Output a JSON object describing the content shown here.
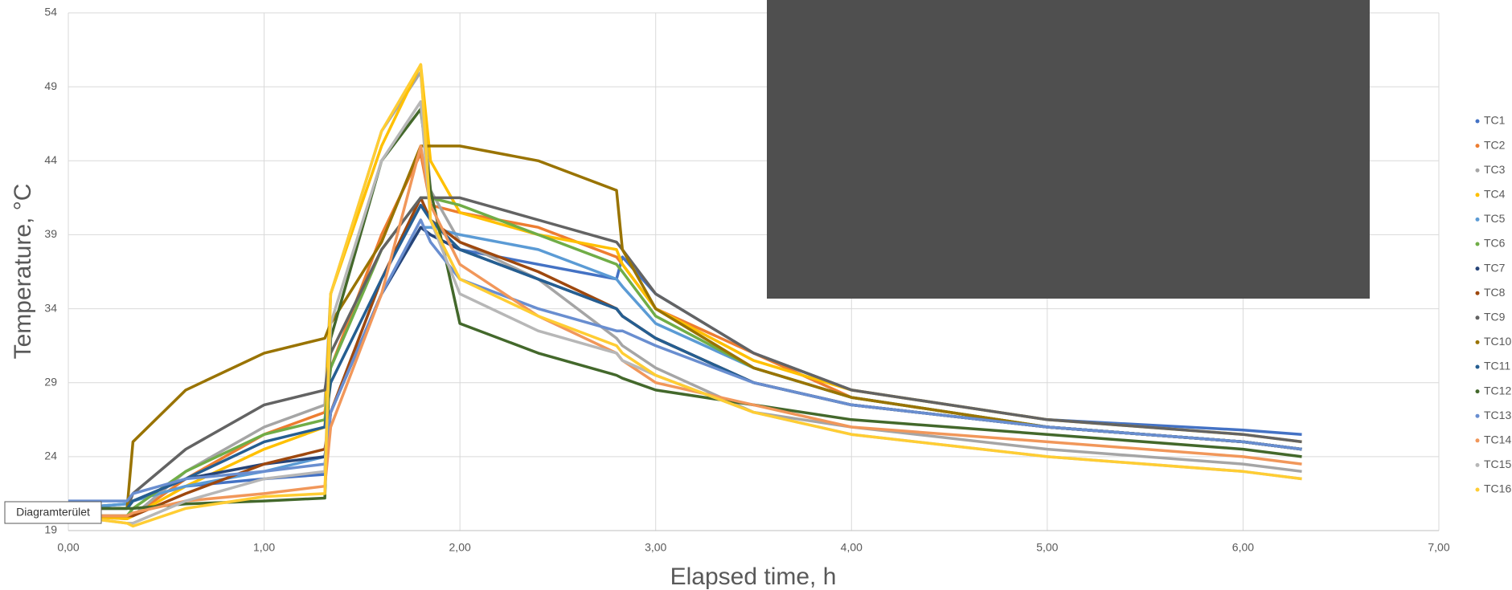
{
  "chart_data": {
    "type": "line",
    "x_label": "Elapsed time, h",
    "y_label": "Temperature, °C",
    "tooltip": "Diagramterület",
    "grid": true,
    "legend": "right",
    "xlim": [
      0,
      7
    ],
    "ylim": [
      19,
      54
    ],
    "xticks": [
      {
        "value": 0,
        "label": "0,00"
      },
      {
        "value": 1,
        "label": "1,00"
      },
      {
        "value": 2,
        "label": "2,00"
      },
      {
        "value": 3,
        "label": "3,00"
      },
      {
        "value": 4,
        "label": "4,00"
      },
      {
        "value": 5,
        "label": "5,00"
      },
      {
        "value": 6,
        "label": "6,00"
      },
      {
        "value": 7,
        "label": "7,00"
      }
    ],
    "yticks": [
      19,
      24,
      29,
      34,
      39,
      44,
      49,
      54
    ],
    "x": [
      0,
      0.3,
      0.33,
      0.6,
      1.0,
      1.31,
      1.34,
      1.6,
      1.8,
      1.85,
      2.0,
      2.4,
      2.8,
      2.83,
      3.0,
      3.5,
      4.0,
      5.0,
      6.0,
      6.3
    ],
    "series": [
      {
        "name": "TC1",
        "color": "#4472c4",
        "values": [
          20.5,
          20.8,
          21,
          22,
          22.5,
          22.8,
          27,
          35,
          39.5,
          39,
          38,
          37,
          36,
          37.5,
          35,
          31,
          28.5,
          26.5,
          25.8,
          25.5
        ]
      },
      {
        "name": "TC2",
        "color": "#ed7d31",
        "values": [
          20,
          20,
          20,
          22.5,
          25.5,
          27,
          30,
          39,
          44.5,
          41,
          40.5,
          39.5,
          37.5,
          37,
          34,
          31,
          28,
          26,
          25,
          24.5
        ]
      },
      {
        "name": "TC3",
        "color": "#a5a5a5",
        "values": [
          20,
          19.8,
          20,
          23,
          26,
          27.5,
          35,
          46,
          50,
          42,
          38.5,
          36,
          32,
          31.5,
          30,
          27,
          26,
          24.5,
          23.5,
          23
        ]
      },
      {
        "name": "TC4",
        "color": "#ffc000",
        "values": [
          20,
          19.8,
          20,
          22,
          24.5,
          26,
          35,
          45,
          50.5,
          44,
          40.5,
          39,
          38,
          37,
          34,
          30.5,
          28.5,
          26.5,
          25.5,
          25
        ]
      },
      {
        "name": "TC5",
        "color": "#5b9bd5",
        "values": [
          20.5,
          20.8,
          21,
          22,
          23,
          24,
          27,
          35,
          39.5,
          39.5,
          39,
          38,
          36,
          35.5,
          33,
          30,
          28,
          26,
          25,
          24.5
        ]
      },
      {
        "name": "TC6",
        "color": "#70ad47",
        "values": [
          20,
          20,
          20.5,
          23,
          25.5,
          26.5,
          30,
          38,
          41.5,
          41.5,
          41,
          39,
          37,
          36.5,
          33.5,
          30,
          28,
          26,
          25,
          24.5
        ]
      },
      {
        "name": "TC7",
        "color": "#264478",
        "values": [
          20.5,
          20.5,
          21,
          22.5,
          23.5,
          24,
          27,
          35,
          39.5,
          39,
          38,
          36,
          34,
          33.5,
          32,
          29,
          27.5,
          26,
          25,
          24.5
        ]
      },
      {
        "name": "TC8",
        "color": "#9e480e",
        "values": [
          20,
          20,
          20,
          21.5,
          23.5,
          24.5,
          27,
          36,
          41.5,
          40,
          38.5,
          36.5,
          34,
          33.5,
          32,
          29,
          27.5,
          26,
          25,
          24.5
        ]
      },
      {
        "name": "TC9",
        "color": "#636363",
        "values": [
          20.5,
          20.5,
          21.5,
          24.5,
          27.5,
          28.5,
          31,
          38,
          41.5,
          41.5,
          41.5,
          40,
          38.5,
          38,
          35,
          31,
          28.5,
          26.5,
          25.5,
          25
        ]
      },
      {
        "name": "TC10",
        "color": "#997300",
        "values": [
          20.5,
          20.5,
          25,
          28.5,
          31,
          32,
          33,
          38.5,
          45,
          45,
          45,
          44,
          42,
          38,
          34,
          30,
          28,
          26,
          25,
          24.5
        ]
      },
      {
        "name": "TC11",
        "color": "#255e91",
        "values": [
          20.5,
          20.5,
          21,
          22.5,
          25,
          26,
          29,
          36,
          41,
          40,
          38,
          36,
          34,
          33.5,
          32,
          29,
          27.5,
          26,
          25,
          24.5
        ]
      },
      {
        "name": "TC12",
        "color": "#43682b",
        "values": [
          20.5,
          20.5,
          20.5,
          20.8,
          21,
          21.2,
          32,
          44,
          47.5,
          42,
          33,
          31,
          29.5,
          29.3,
          28.5,
          27.5,
          26.5,
          25.5,
          24.5,
          24
        ]
      },
      {
        "name": "TC13",
        "color": "#698ed0",
        "values": [
          21,
          21,
          21.5,
          22.5,
          23,
          23.5,
          27,
          35,
          40,
          38.5,
          36,
          34,
          32.5,
          32.5,
          31.5,
          29,
          27.5,
          26,
          25,
          24.5
        ]
      },
      {
        "name": "TC14",
        "color": "#f1975a",
        "values": [
          20,
          20,
          20.2,
          21,
          21.5,
          22,
          26,
          35,
          45,
          41,
          37,
          33.5,
          31,
          30.5,
          29,
          27.5,
          26,
          25,
          24,
          23.5
        ]
      },
      {
        "name": "TC15",
        "color": "#b7b7b7",
        "values": [
          20,
          19.5,
          19.5,
          21,
          22.5,
          23,
          33,
          44,
          48,
          40,
          35,
          32.5,
          31,
          30.5,
          29.5,
          27,
          25.5,
          24,
          23,
          22.5
        ]
      },
      {
        "name": "TC16",
        "color": "#ffcd33",
        "values": [
          20,
          19.5,
          19.3,
          20.5,
          21.3,
          21.5,
          35,
          46,
          50.5,
          40,
          36,
          33.5,
          31.5,
          31,
          29.5,
          27,
          25.5,
          24,
          23,
          22.5
        ]
      }
    ]
  }
}
